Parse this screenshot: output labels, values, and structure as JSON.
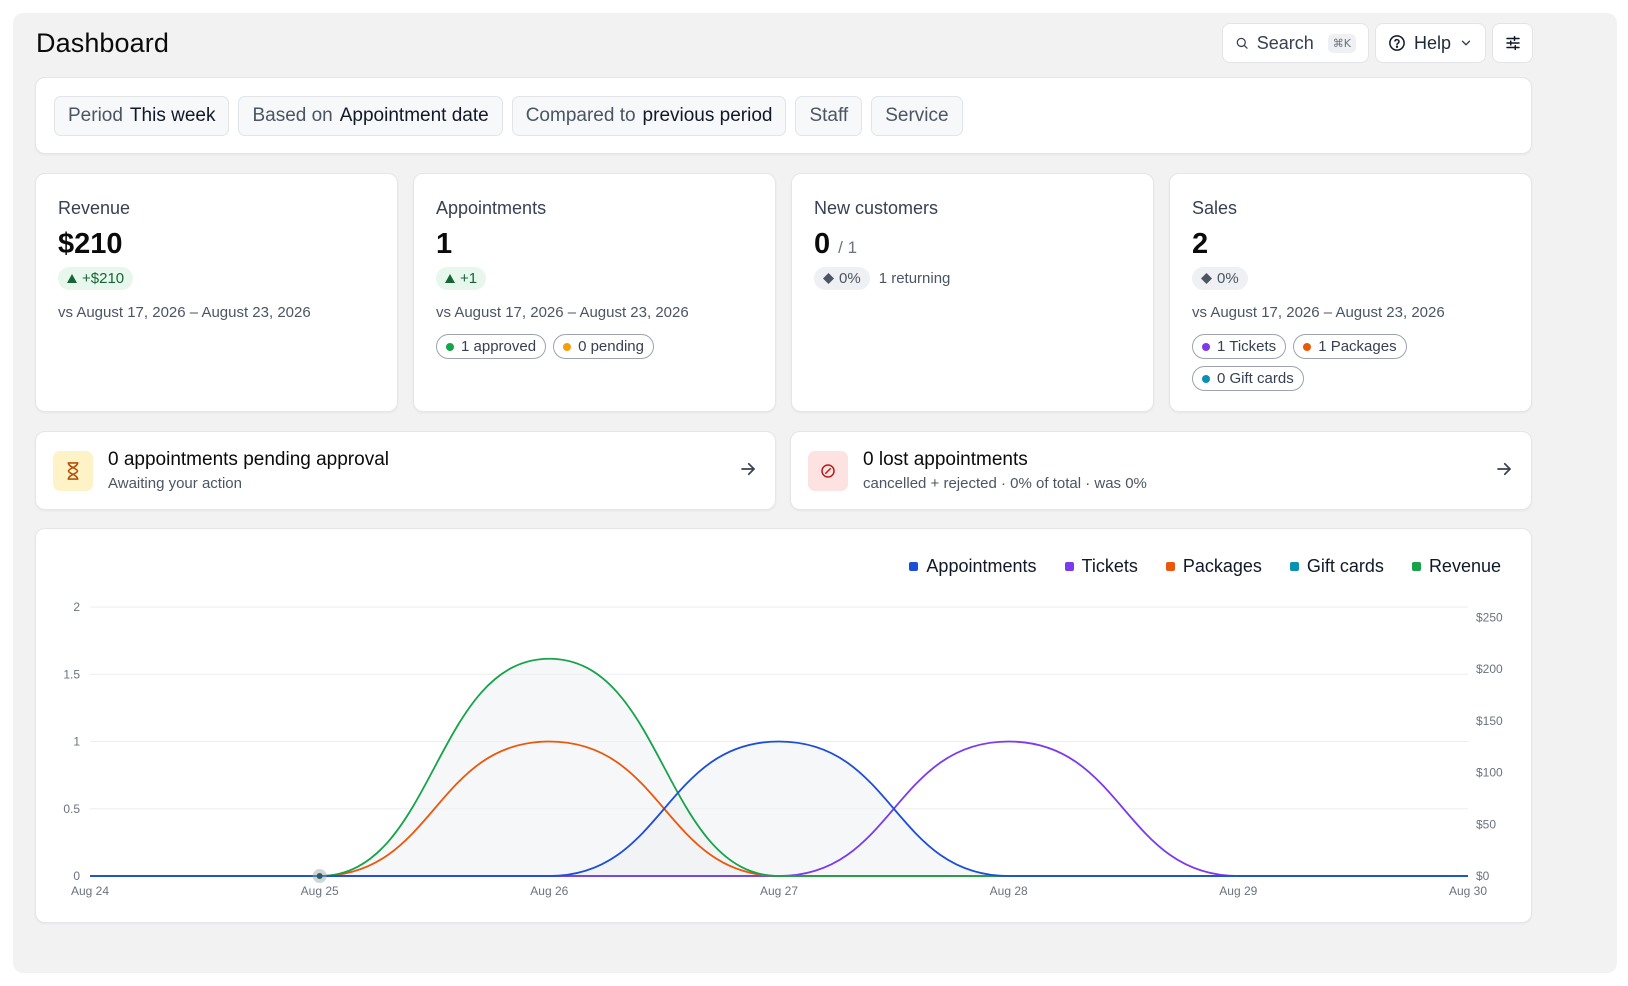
{
  "header": {
    "title": "Dashboard",
    "search_label": "Search",
    "search_shortcut": "⌘K",
    "help_label": "Help"
  },
  "filters": [
    {
      "label": "Period",
      "value": "This week"
    },
    {
      "label": "Based on",
      "value": "Appointment date"
    },
    {
      "label": "Compared to",
      "value": "previous period"
    },
    {
      "label": "Staff",
      "value": ""
    },
    {
      "label": "Service",
      "value": ""
    }
  ],
  "stats": {
    "revenue": {
      "label": "Revenue",
      "value": "$210",
      "delta": "+$210",
      "comparison": "vs August 17, 2026 – August 23, 2026"
    },
    "appointments": {
      "label": "Appointments",
      "value": "1",
      "delta": "+1",
      "comparison": "vs August 17, 2026 – August 23, 2026",
      "pills": [
        {
          "label": "1 approved",
          "color": "#16a34a"
        },
        {
          "label": "0 pending",
          "color": "#f59e0b"
        }
      ]
    },
    "new_customers": {
      "label": "New customers",
      "value": "0",
      "sub": "/ 1",
      "delta": "0%",
      "returning": "1 returning"
    },
    "sales": {
      "label": "Sales",
      "value": "2",
      "delta": "0%",
      "comparison": "vs August 17, 2026 – August 23, 2026",
      "pills": [
        {
          "label": "1 Tickets",
          "color": "#7c3aed"
        },
        {
          "label": "1 Packages",
          "color": "#ea580c"
        },
        {
          "label": "0 Gift cards",
          "color": "#0891b2"
        }
      ]
    }
  },
  "alerts": {
    "pending": {
      "title": "0 appointments pending approval",
      "subtitle": "Awaiting your action",
      "icon": "hourglass-icon"
    },
    "lost": {
      "title": "0 lost appointments",
      "subtitle": "cancelled + rejected · 0% of total · was 0%",
      "icon": "ban-icon"
    }
  },
  "chart_data": {
    "type": "line",
    "x": [
      "Aug 24",
      "Aug 25",
      "Aug 26",
      "Aug 27",
      "Aug 28",
      "Aug 29",
      "Aug 30"
    ],
    "y_left": {
      "ticks": [
        "0",
        "0.5",
        "1",
        "1.5",
        "2"
      ],
      "lim": [
        0,
        2
      ]
    },
    "y_right": {
      "ticks": [
        "$0",
        "$50",
        "$100",
        "$150",
        "$200",
        "$250"
      ],
      "lim": [
        0,
        260
      ]
    },
    "series": [
      {
        "name": "Appointments",
        "color": "#1d4ed8",
        "axis": "left",
        "values": [
          0,
          0,
          0,
          1,
          0,
          0,
          0
        ]
      },
      {
        "name": "Tickets",
        "color": "#7c3aed",
        "axis": "left",
        "values": [
          0,
          0,
          0,
          0,
          1,
          0,
          0
        ]
      },
      {
        "name": "Packages",
        "color": "#ea580c",
        "axis": "left",
        "values": [
          0,
          0,
          1,
          0,
          0,
          0,
          0
        ]
      },
      {
        "name": "Gift cards",
        "color": "#0891b2",
        "axis": "left",
        "values": [
          0,
          0,
          0,
          0,
          0,
          0,
          0
        ]
      },
      {
        "name": "Revenue",
        "color": "#16a34a",
        "axis": "right",
        "values": [
          0,
          0,
          210,
          0,
          0,
          0,
          0
        ]
      }
    ],
    "grid": true,
    "legend_position": "top-right"
  }
}
